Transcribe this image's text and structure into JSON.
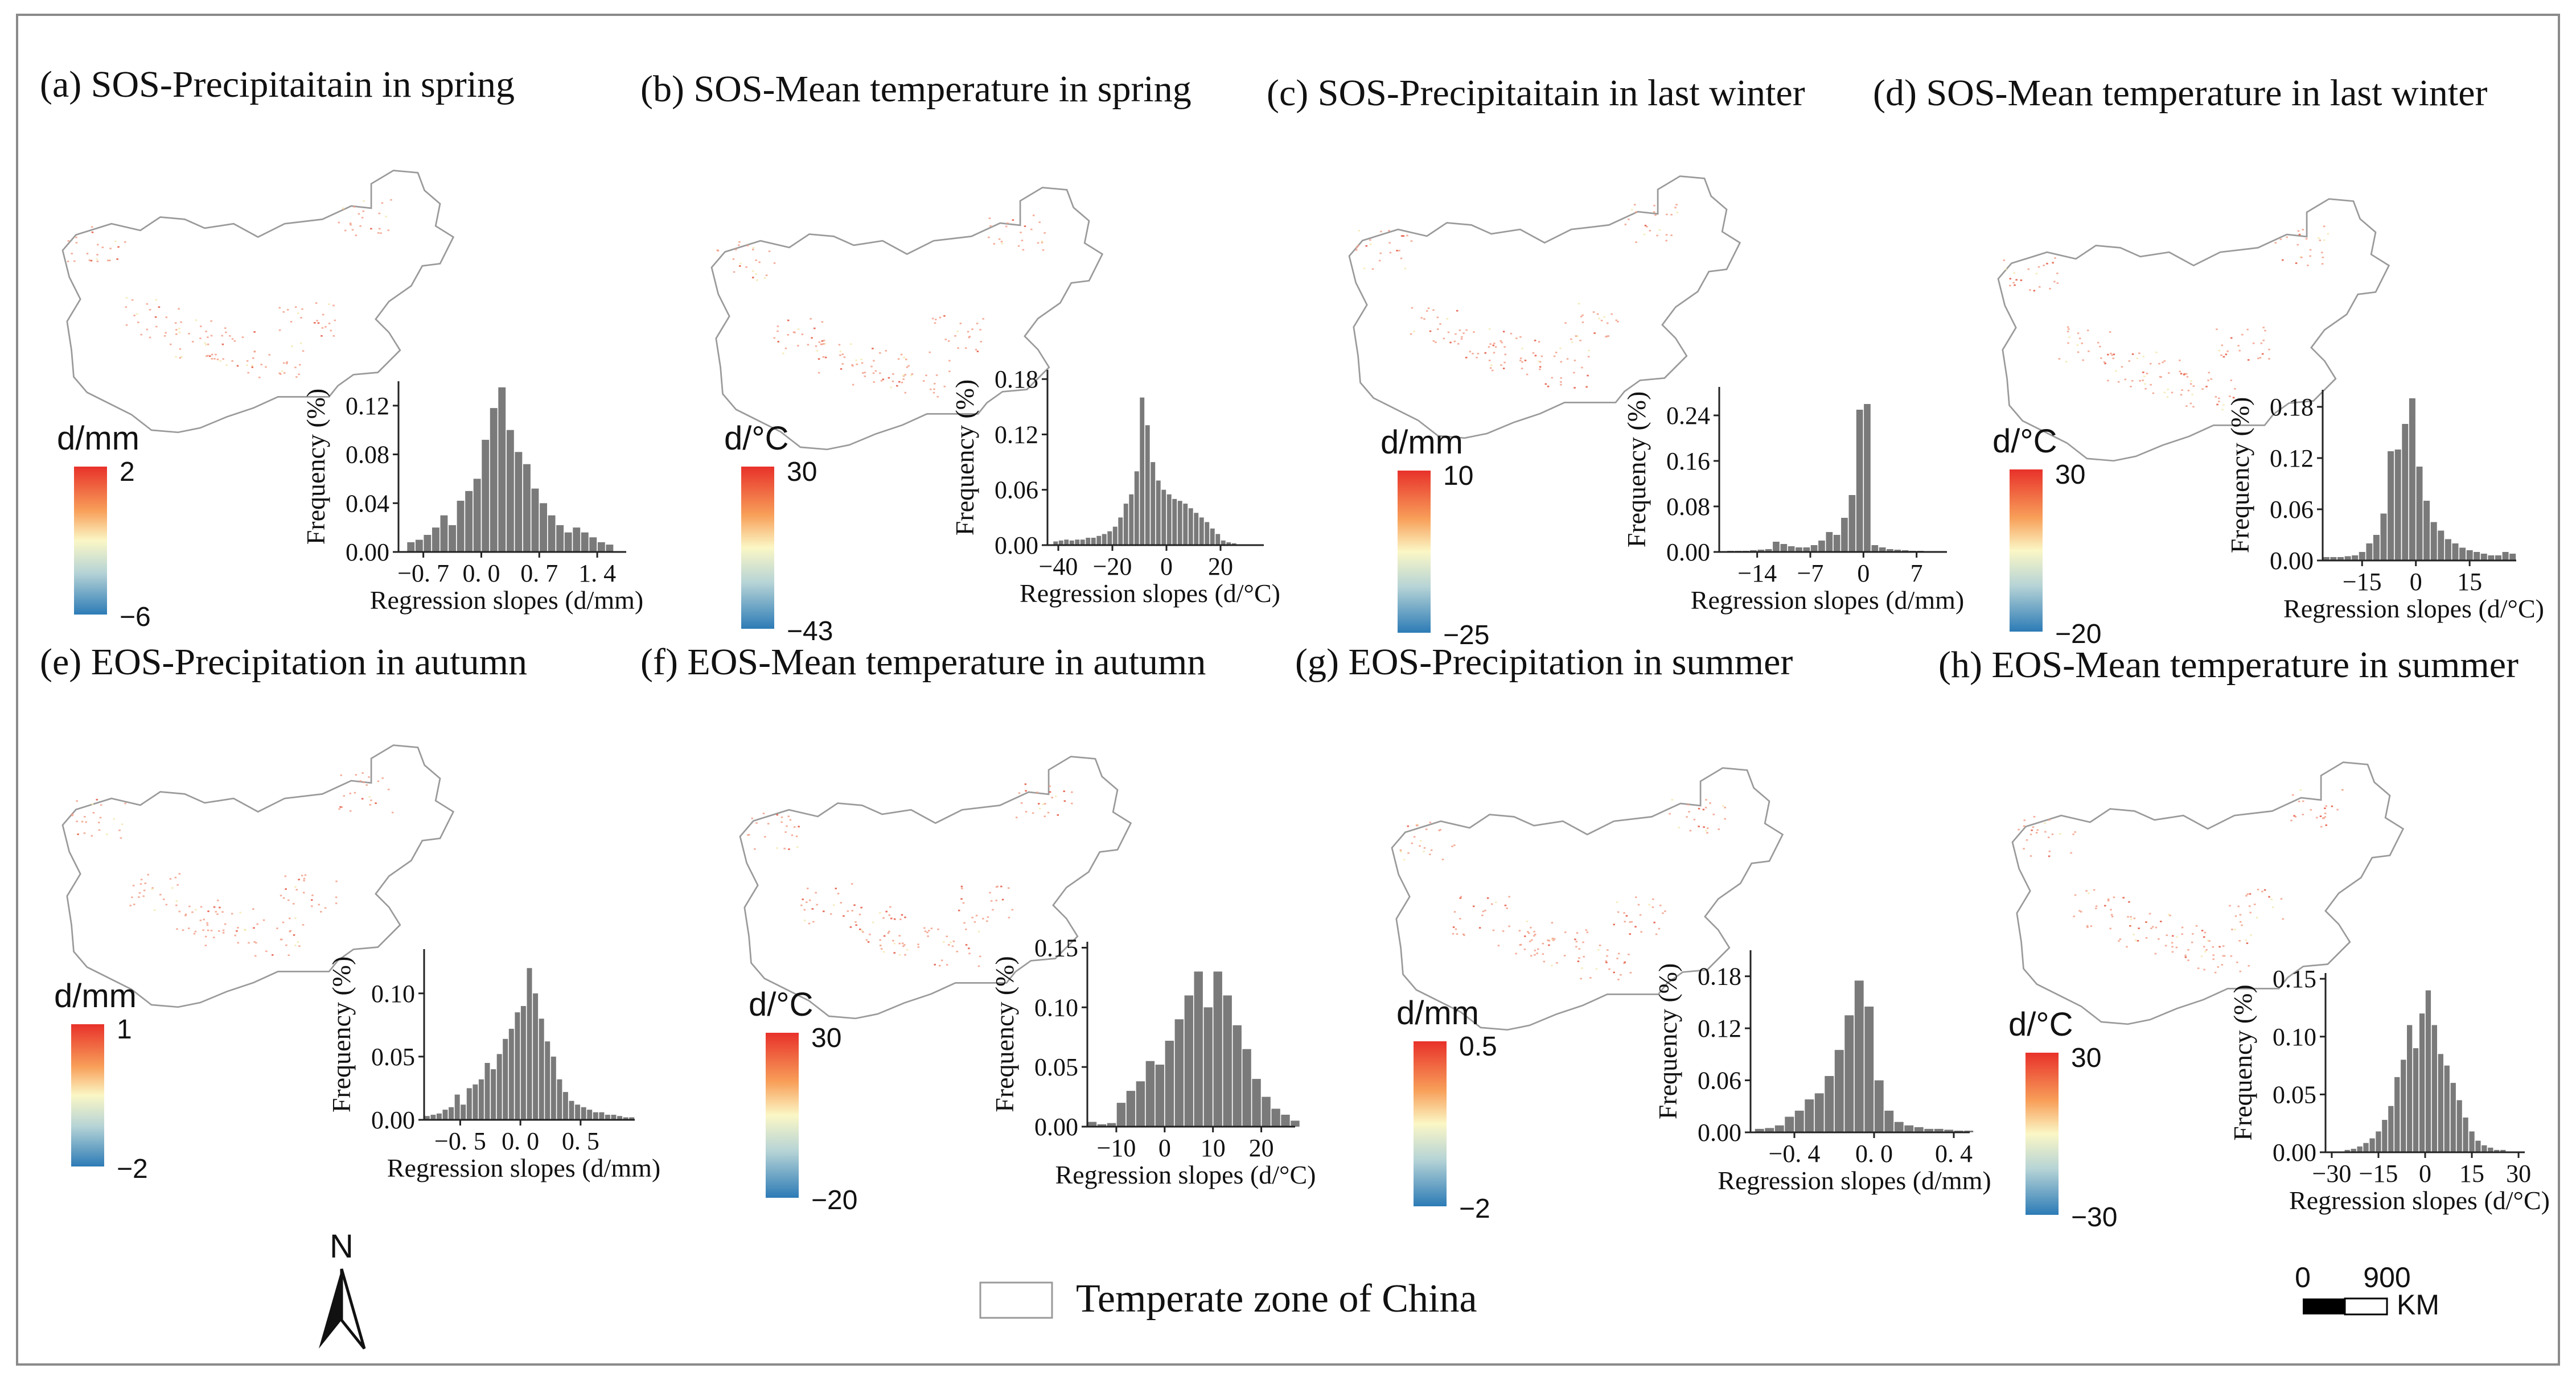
{
  "legend": {
    "boundary_label": "Temperate zone of China"
  },
  "north_arrow": {
    "label": "N"
  },
  "scale_bar": {
    "zero": "0",
    "distance": "900",
    "unit": "KM"
  },
  "colors": {
    "high": "#e8312a",
    "mid": "#fbf7c6",
    "low": "#2c7bb6",
    "bar": "#7a7a7a",
    "map_fill": "#ffffff",
    "map_outline": "#9a9a9a",
    "frame": "#8a8a8a"
  },
  "chart_data": [
    {
      "id": "a",
      "type": "bar",
      "title": "(a) SOS-Precipitaitain in spring",
      "xlabel": "Regression slopes (d/mm)",
      "ylabel": "Frequency (%)",
      "colorbar_unit": "d/mm",
      "colorbar_max": "2",
      "colorbar_min": "−6",
      "xlim": [
        -1.0,
        1.75
      ],
      "ylim": [
        0,
        0.14
      ],
      "xticks": [
        -0.7,
        0.0,
        0.7,
        1.4
      ],
      "xtick_labels": [
        "−0. 7",
        "0. 0",
        "0. 7",
        "1. 4"
      ],
      "yticks": [
        0.0,
        0.04,
        0.08,
        0.12
      ],
      "ytick_labels": [
        "0.00",
        "0.04",
        "0.08",
        "0.12"
      ],
      "bins_start": -0.9,
      "bin_width": 0.1,
      "values": [
        0.008,
        0.01,
        0.014,
        0.02,
        0.03,
        0.022,
        0.042,
        0.05,
        0.06,
        0.092,
        0.118,
        0.135,
        0.1,
        0.082,
        0.072,
        0.052,
        0.04,
        0.03,
        0.022,
        0.016,
        0.02,
        0.016,
        0.012,
        0.008,
        0.006
      ]
    },
    {
      "id": "b",
      "type": "bar",
      "title": "(b) SOS-Mean temperature in spring",
      "xlabel": "Regression slopes (d/°C)",
      "ylabel": "Frequency (%)",
      "colorbar_unit": "d/°C",
      "colorbar_max": "30",
      "colorbar_min": "−43",
      "xlim": [
        -44,
        36
      ],
      "ylim": [
        0,
        0.19
      ],
      "xticks": [
        -40,
        -20,
        0,
        20
      ],
      "xtick_labels": [
        "−40",
        "−20",
        "0",
        "20"
      ],
      "yticks": [
        0.0,
        0.06,
        0.12,
        0.18
      ],
      "ytick_labels": [
        "0.00",
        "0.06",
        "0.12",
        "0.18"
      ],
      "bins_start": -42,
      "bin_width": 2,
      "values": [
        0.004,
        0.005,
        0.006,
        0.005,
        0.006,
        0.006,
        0.008,
        0.008,
        0.01,
        0.012,
        0.015,
        0.02,
        0.03,
        0.045,
        0.055,
        0.08,
        0.16,
        0.13,
        0.09,
        0.07,
        0.06,
        0.055,
        0.05,
        0.048,
        0.045,
        0.04,
        0.035,
        0.03,
        0.025,
        0.018,
        0.012,
        0.005,
        0.003,
        0.002
      ]
    },
    {
      "id": "c",
      "type": "bar",
      "title": "(c) SOS-Precipitaitain in last winter",
      "xlabel": "Regression slopes (d/mm)",
      "ylabel": "Frequency (%)",
      "colorbar_unit": "d/mm",
      "colorbar_max": "10",
      "colorbar_min": "−25",
      "xlim": [
        -19,
        11
      ],
      "ylim": [
        0,
        0.29
      ],
      "xticks": [
        -14,
        -7,
        0,
        7
      ],
      "xtick_labels": [
        "−14",
        "−7",
        "0",
        "7"
      ],
      "yticks": [
        0.0,
        0.08,
        0.16,
        0.24
      ],
      "ytick_labels": [
        "0.00",
        "0.08",
        "0.16",
        "0.24"
      ],
      "bins_start": -18,
      "bin_width": 1,
      "values": [
        0.002,
        0.002,
        0.002,
        0.003,
        0.004,
        0.005,
        0.018,
        0.014,
        0.01,
        0.008,
        0.008,
        0.012,
        0.02,
        0.035,
        0.03,
        0.06,
        0.1,
        0.25,
        0.26,
        0.012,
        0.008,
        0.005,
        0.004,
        0.003,
        0.002,
        0.002,
        0.001,
        0.001
      ]
    },
    {
      "id": "d",
      "type": "bar",
      "title": "(d) SOS-Mean temperature in last winter",
      "xlabel": "Regression slopes (d/°C)",
      "ylabel": "Frequency (%)",
      "colorbar_unit": "d/°C",
      "colorbar_max": "30",
      "colorbar_min": "−20",
      "xlim": [
        -26,
        28
      ],
      "ylim": [
        0,
        0.2
      ],
      "xticks": [
        -15,
        0,
        15
      ],
      "xtick_labels": [
        "−15",
        "0",
        "15"
      ],
      "yticks": [
        0.0,
        0.06,
        0.12,
        0.18
      ],
      "ytick_labels": [
        "0.00",
        "0.06",
        "0.12",
        "0.18"
      ],
      "bins_start": -26,
      "bin_width": 2,
      "values": [
        0.004,
        0.004,
        0.004,
        0.005,
        0.006,
        0.01,
        0.02,
        0.03,
        0.055,
        0.128,
        0.13,
        0.16,
        0.19,
        0.11,
        0.07,
        0.045,
        0.035,
        0.025,
        0.02,
        0.015,
        0.012,
        0.01,
        0.008,
        0.006,
        0.006,
        0.01,
        0.008
      ]
    },
    {
      "id": "e",
      "type": "bar",
      "title": "(e) EOS-Precipitation in autumn",
      "xlabel": "Regression slopes (d/mm)",
      "ylabel": "Frequency (%)",
      "colorbar_unit": "d/mm",
      "colorbar_max": "1",
      "colorbar_min": "−2",
      "xlim": [
        -0.8,
        0.95
      ],
      "ylim": [
        0,
        0.135
      ],
      "xticks": [
        -0.5,
        0.0,
        0.5
      ],
      "xtick_labels": [
        "−0. 5",
        "0. 0",
        "0. 5"
      ],
      "yticks": [
        0.0,
        0.05,
        0.1
      ],
      "ytick_labels": [
        "0.00",
        "0.05",
        "0.10"
      ],
      "bins_start": -0.8,
      "bin_width": 0.05,
      "values": [
        0.003,
        0.004,
        0.005,
        0.008,
        0.01,
        0.02,
        0.012,
        0.025,
        0.028,
        0.032,
        0.045,
        0.04,
        0.052,
        0.064,
        0.072,
        0.085,
        0.09,
        0.12,
        0.1,
        0.08,
        0.062,
        0.05,
        0.032,
        0.022,
        0.015,
        0.012,
        0.01,
        0.008,
        0.006,
        0.006,
        0.004,
        0.004,
        0.003,
        0.002,
        0.002
      ]
    },
    {
      "id": "f",
      "type": "bar",
      "title": "(f) EOS-Mean temperature in autumn",
      "xlabel": "Regression slopes (d/°C)",
      "ylabel": "Frequency (%)",
      "colorbar_unit": "d/°C",
      "colorbar_max": "30",
      "colorbar_min": "−20",
      "xlim": [
        -16,
        27
      ],
      "ylim": [
        0,
        0.155
      ],
      "xticks": [
        -10,
        0,
        10,
        20
      ],
      "xtick_labels": [
        "−10",
        "0",
        "10",
        "20"
      ],
      "yticks": [
        0.0,
        0.05,
        0.1,
        0.15
      ],
      "ytick_labels": [
        "0.00",
        "0.05",
        "0.10",
        "0.15"
      ],
      "bins_start": -16,
      "bin_width": 2,
      "values": [
        0.004,
        0.002,
        0.003,
        0.02,
        0.03,
        0.038,
        0.055,
        0.052,
        0.072,
        0.09,
        0.11,
        0.13,
        0.1,
        0.13,
        0.11,
        0.085,
        0.065,
        0.04,
        0.025,
        0.015,
        0.01,
        0.005
      ]
    },
    {
      "id": "g",
      "type": "bar",
      "title": "(g) EOS-Precipitation in summer",
      "xlabel": "Regression slopes (d/mm)",
      "ylabel": "Frequency (%)",
      "colorbar_unit": "d/mm",
      "colorbar_max": "0.5",
      "colorbar_min": "−2",
      "xlim": [
        -0.62,
        0.48
      ],
      "ylim": [
        0,
        0.21
      ],
      "xticks": [
        -0.4,
        0.0,
        0.4
      ],
      "xtick_labels": [
        "−0. 4",
        "0. 0",
        "0. 4"
      ],
      "yticks": [
        0.0,
        0.06,
        0.12,
        0.18
      ],
      "ytick_labels": [
        "0.00",
        "0.06",
        "0.12",
        "0.18"
      ],
      "bins_start": -0.6,
      "bin_width": 0.05,
      "values": [
        0.004,
        0.005,
        0.008,
        0.018,
        0.025,
        0.038,
        0.045,
        0.065,
        0.095,
        0.135,
        0.175,
        0.145,
        0.06,
        0.025,
        0.012,
        0.008,
        0.006,
        0.004,
        0.004,
        0.003,
        0.002,
        0.002
      ]
    },
    {
      "id": "h",
      "type": "bar",
      "title": "(h) EOS-Mean temperature in summer",
      "xlabel": "Regression slopes (d/°C)",
      "ylabel": "Frequency (%)",
      "colorbar_unit": "d/°C",
      "colorbar_max": "30",
      "colorbar_min": "−30",
      "xlim": [
        -32,
        32
      ],
      "ylim": [
        0,
        0.155
      ],
      "xticks": [
        -30,
        -15,
        0,
        15,
        30
      ],
      "xtick_labels": [
        "−30",
        "−15",
        "0",
        "15",
        "30"
      ],
      "yticks": [
        0.0,
        0.05,
        0.1,
        0.15
      ],
      "ytick_labels": [
        "0.00",
        "0.05",
        "0.10",
        "0.15"
      ],
      "bins_start": -26,
      "bin_width": 2,
      "values": [
        0.002,
        0.003,
        0.005,
        0.008,
        0.012,
        0.018,
        0.028,
        0.04,
        0.065,
        0.08,
        0.11,
        0.09,
        0.12,
        0.14,
        0.11,
        0.085,
        0.075,
        0.06,
        0.045,
        0.03,
        0.018,
        0.01,
        0.006,
        0.004,
        0.002,
        0.002
      ]
    }
  ]
}
